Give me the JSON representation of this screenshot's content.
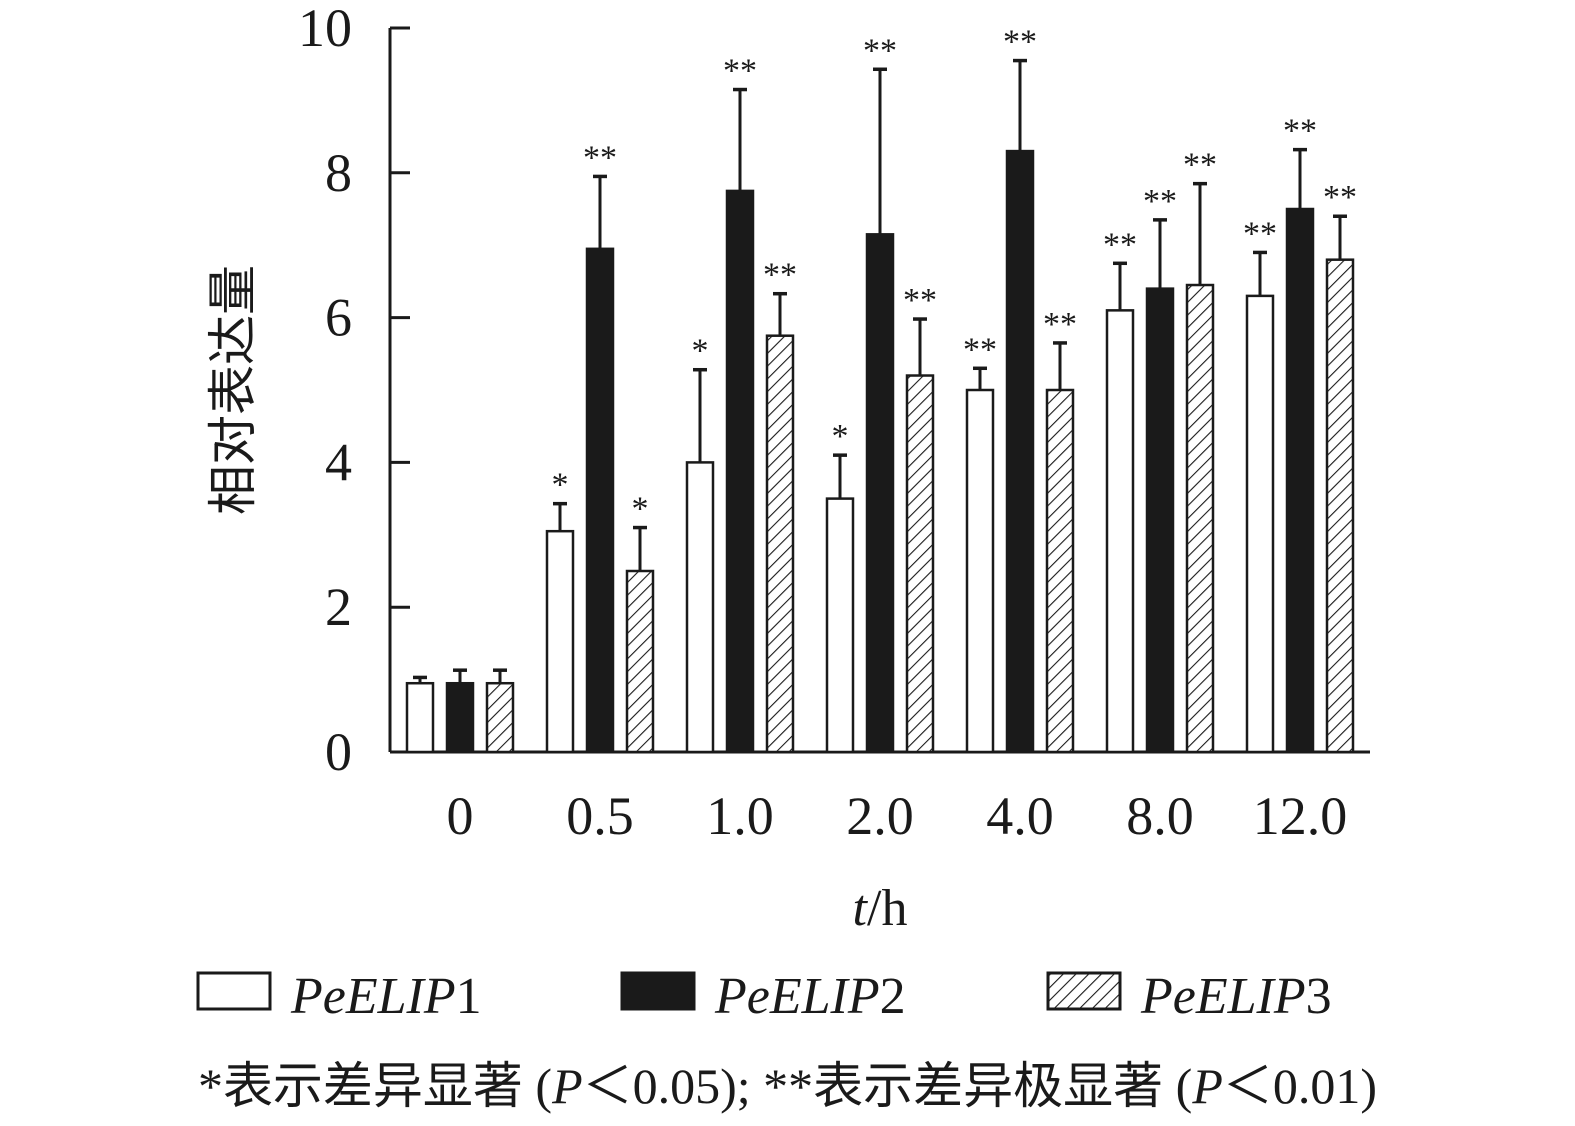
{
  "chart_data": {
    "type": "bar",
    "title": "",
    "xlabel": "t/h",
    "xlabel_italic_part": "t",
    "xlabel_rest": "/h",
    "ylabel": "相对表达量",
    "ylim": [
      0,
      10
    ],
    "yticks": [
      "0",
      "2",
      "4",
      "6",
      "8",
      "10"
    ],
    "categories": [
      "0",
      "0.5",
      "1.0",
      "2.0",
      "4.0",
      "8.0",
      "12.0"
    ],
    "series": [
      {
        "name": "PeELIP1",
        "name_italic": "PeELIP",
        "name_suffix": "1",
        "fill": "white",
        "values": [
          0.95,
          3.05,
          4.0,
          3.5,
          5.0,
          6.1,
          6.3
        ],
        "errors": [
          0.08,
          0.38,
          1.28,
          0.6,
          0.3,
          0.65,
          0.6
        ],
        "significance": [
          "",
          "*",
          "*",
          "*",
          "**",
          "**",
          "**"
        ]
      },
      {
        "name": "PeELIP2",
        "name_italic": "PeELIP",
        "name_suffix": "2",
        "fill": "black",
        "values": [
          0.95,
          6.95,
          7.75,
          7.15,
          8.3,
          6.4,
          7.5
        ],
        "errors": [
          0.18,
          1.0,
          1.4,
          2.28,
          1.25,
          0.95,
          0.82
        ],
        "significance": [
          "",
          "**",
          "**",
          "**",
          "**",
          "**",
          "**"
        ]
      },
      {
        "name": "PeELIP3",
        "name_italic": "PeELIP",
        "name_suffix": "3",
        "fill": "hatched",
        "values": [
          0.95,
          2.5,
          5.75,
          5.2,
          5.0,
          6.45,
          6.8
        ],
        "errors": [
          0.18,
          0.6,
          0.58,
          0.78,
          0.65,
          1.4,
          0.6
        ],
        "significance": [
          "",
          "*",
          "**",
          "**",
          "**",
          "**",
          "**"
        ]
      }
    ],
    "legend_position": "bottom",
    "colors": {
      "ink": "#1a1a1a",
      "fill_black": "#1a1a1a",
      "fill_white": "#ffffff"
    }
  },
  "footnote": "*表示差异显著 (P＜0.05); **表示差异极显著 (P＜0.01)",
  "footnote_parts": {
    "a": "*表示差异显著 (",
    "p1": "P",
    "b": "＜0.05); **表示差异极显著 (",
    "p2": "P",
    "c": "＜0.01)"
  }
}
